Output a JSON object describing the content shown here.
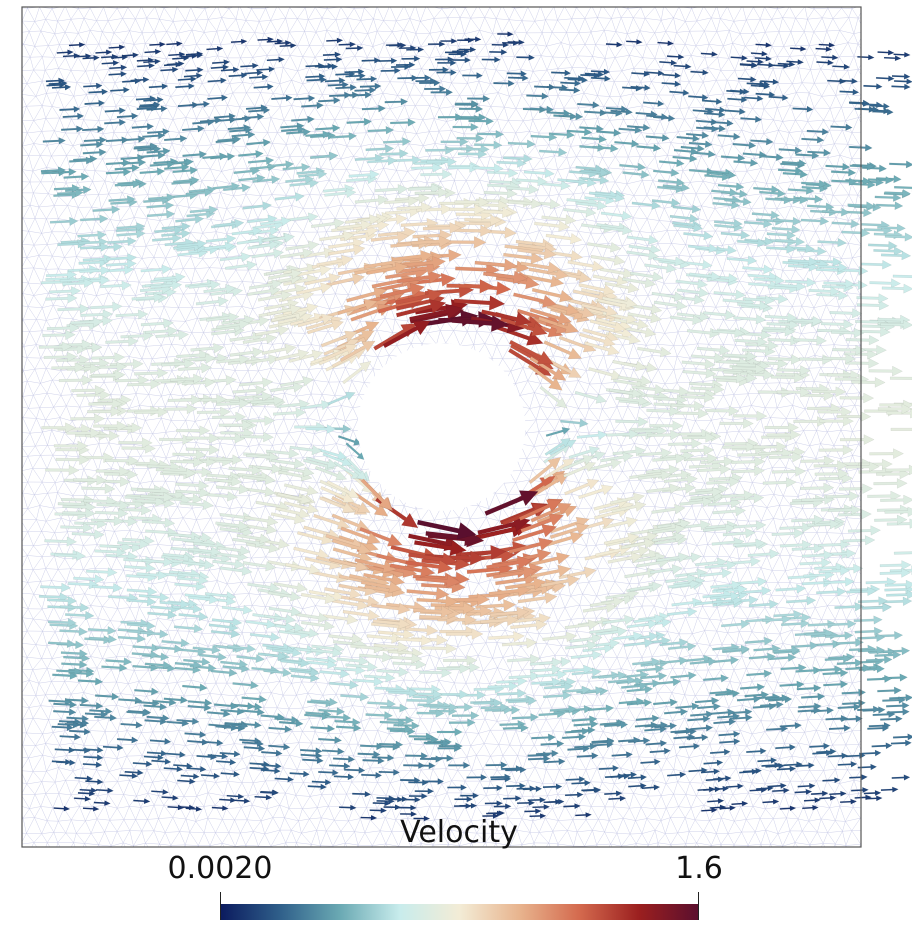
{
  "chart_data": {
    "type": "vector-field",
    "colorbar": {
      "title": "Velocity",
      "min_label": "0.0020",
      "max_label": "1.6",
      "min_value": 0.002,
      "max_value": 1.6,
      "colormap_stops": [
        "#0b1a5e",
        "#2f5f8a",
        "#6aa9b3",
        "#c8ecec",
        "#f3ecd6",
        "#e8b48e",
        "#d46a4e",
        "#9b1f1f",
        "#5a0f2e"
      ]
    },
    "mesh_color": "#c8cbe6",
    "domain": {
      "xlim": [
        0,
        1
      ],
      "ylim": [
        0,
        1
      ]
    },
    "obstacle": {
      "shape": "circle",
      "cx": 0.5,
      "cy": 0.5,
      "r": 0.1
    },
    "inflow_speed": 1.0
  }
}
